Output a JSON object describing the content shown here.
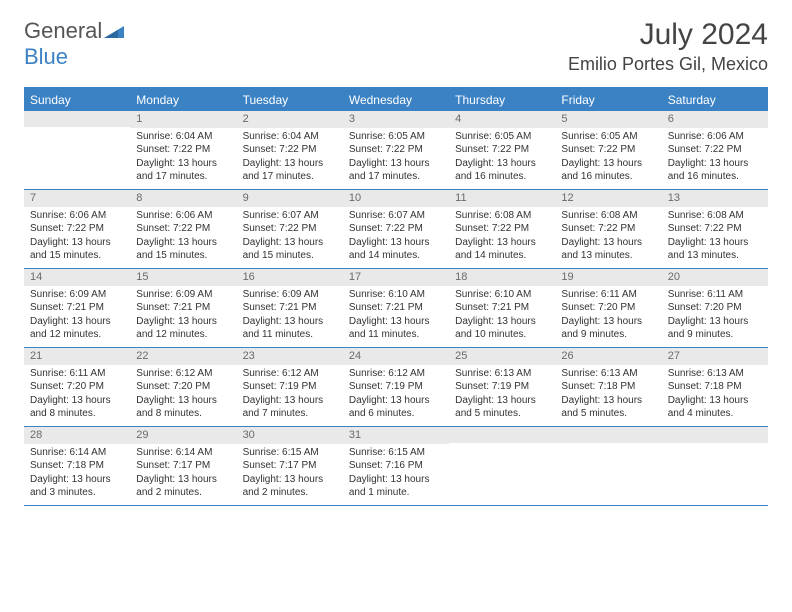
{
  "logo": {
    "text_gray": "General",
    "text_blue": "Blue"
  },
  "header": {
    "title": "July 2024",
    "location": "Emilio Portes Gil, Mexico"
  },
  "colors": {
    "accent": "#3b82c4",
    "header_bg": "#3b82c4",
    "header_text": "#ffffff",
    "daynum_bg": "#e9e9e9",
    "daynum_text": "#6a6a6a",
    "body_text": "#333333",
    "border": "#3b82c4"
  },
  "typography": {
    "title_fontsize": 30,
    "location_fontsize": 18,
    "dayheader_fontsize": 12,
    "daynum_fontsize": 11,
    "cell_fontsize": 10
  },
  "day_names": [
    "Sunday",
    "Monday",
    "Tuesday",
    "Wednesday",
    "Thursday",
    "Friday",
    "Saturday"
  ],
  "weeks": [
    [
      {
        "day": "",
        "lines": []
      },
      {
        "day": "1",
        "lines": [
          "Sunrise: 6:04 AM",
          "Sunset: 7:22 PM",
          "Daylight: 13 hours",
          "and 17 minutes."
        ]
      },
      {
        "day": "2",
        "lines": [
          "Sunrise: 6:04 AM",
          "Sunset: 7:22 PM",
          "Daylight: 13 hours",
          "and 17 minutes."
        ]
      },
      {
        "day": "3",
        "lines": [
          "Sunrise: 6:05 AM",
          "Sunset: 7:22 PM",
          "Daylight: 13 hours",
          "and 17 minutes."
        ]
      },
      {
        "day": "4",
        "lines": [
          "Sunrise: 6:05 AM",
          "Sunset: 7:22 PM",
          "Daylight: 13 hours",
          "and 16 minutes."
        ]
      },
      {
        "day": "5",
        "lines": [
          "Sunrise: 6:05 AM",
          "Sunset: 7:22 PM",
          "Daylight: 13 hours",
          "and 16 minutes."
        ]
      },
      {
        "day": "6",
        "lines": [
          "Sunrise: 6:06 AM",
          "Sunset: 7:22 PM",
          "Daylight: 13 hours",
          "and 16 minutes."
        ]
      }
    ],
    [
      {
        "day": "7",
        "lines": [
          "Sunrise: 6:06 AM",
          "Sunset: 7:22 PM",
          "Daylight: 13 hours",
          "and 15 minutes."
        ]
      },
      {
        "day": "8",
        "lines": [
          "Sunrise: 6:06 AM",
          "Sunset: 7:22 PM",
          "Daylight: 13 hours",
          "and 15 minutes."
        ]
      },
      {
        "day": "9",
        "lines": [
          "Sunrise: 6:07 AM",
          "Sunset: 7:22 PM",
          "Daylight: 13 hours",
          "and 15 minutes."
        ]
      },
      {
        "day": "10",
        "lines": [
          "Sunrise: 6:07 AM",
          "Sunset: 7:22 PM",
          "Daylight: 13 hours",
          "and 14 minutes."
        ]
      },
      {
        "day": "11",
        "lines": [
          "Sunrise: 6:08 AM",
          "Sunset: 7:22 PM",
          "Daylight: 13 hours",
          "and 14 minutes."
        ]
      },
      {
        "day": "12",
        "lines": [
          "Sunrise: 6:08 AM",
          "Sunset: 7:22 PM",
          "Daylight: 13 hours",
          "and 13 minutes."
        ]
      },
      {
        "day": "13",
        "lines": [
          "Sunrise: 6:08 AM",
          "Sunset: 7:22 PM",
          "Daylight: 13 hours",
          "and 13 minutes."
        ]
      }
    ],
    [
      {
        "day": "14",
        "lines": [
          "Sunrise: 6:09 AM",
          "Sunset: 7:21 PM",
          "Daylight: 13 hours",
          "and 12 minutes."
        ]
      },
      {
        "day": "15",
        "lines": [
          "Sunrise: 6:09 AM",
          "Sunset: 7:21 PM",
          "Daylight: 13 hours",
          "and 12 minutes."
        ]
      },
      {
        "day": "16",
        "lines": [
          "Sunrise: 6:09 AM",
          "Sunset: 7:21 PM",
          "Daylight: 13 hours",
          "and 11 minutes."
        ]
      },
      {
        "day": "17",
        "lines": [
          "Sunrise: 6:10 AM",
          "Sunset: 7:21 PM",
          "Daylight: 13 hours",
          "and 11 minutes."
        ]
      },
      {
        "day": "18",
        "lines": [
          "Sunrise: 6:10 AM",
          "Sunset: 7:21 PM",
          "Daylight: 13 hours",
          "and 10 minutes."
        ]
      },
      {
        "day": "19",
        "lines": [
          "Sunrise: 6:11 AM",
          "Sunset: 7:20 PM",
          "Daylight: 13 hours",
          "and 9 minutes."
        ]
      },
      {
        "day": "20",
        "lines": [
          "Sunrise: 6:11 AM",
          "Sunset: 7:20 PM",
          "Daylight: 13 hours",
          "and 9 minutes."
        ]
      }
    ],
    [
      {
        "day": "21",
        "lines": [
          "Sunrise: 6:11 AM",
          "Sunset: 7:20 PM",
          "Daylight: 13 hours",
          "and 8 minutes."
        ]
      },
      {
        "day": "22",
        "lines": [
          "Sunrise: 6:12 AM",
          "Sunset: 7:20 PM",
          "Daylight: 13 hours",
          "and 8 minutes."
        ]
      },
      {
        "day": "23",
        "lines": [
          "Sunrise: 6:12 AM",
          "Sunset: 7:19 PM",
          "Daylight: 13 hours",
          "and 7 minutes."
        ]
      },
      {
        "day": "24",
        "lines": [
          "Sunrise: 6:12 AM",
          "Sunset: 7:19 PM",
          "Daylight: 13 hours",
          "and 6 minutes."
        ]
      },
      {
        "day": "25",
        "lines": [
          "Sunrise: 6:13 AM",
          "Sunset: 7:19 PM",
          "Daylight: 13 hours",
          "and 5 minutes."
        ]
      },
      {
        "day": "26",
        "lines": [
          "Sunrise: 6:13 AM",
          "Sunset: 7:18 PM",
          "Daylight: 13 hours",
          "and 5 minutes."
        ]
      },
      {
        "day": "27",
        "lines": [
          "Sunrise: 6:13 AM",
          "Sunset: 7:18 PM",
          "Daylight: 13 hours",
          "and 4 minutes."
        ]
      }
    ],
    [
      {
        "day": "28",
        "lines": [
          "Sunrise: 6:14 AM",
          "Sunset: 7:18 PM",
          "Daylight: 13 hours",
          "and 3 minutes."
        ]
      },
      {
        "day": "29",
        "lines": [
          "Sunrise: 6:14 AM",
          "Sunset: 7:17 PM",
          "Daylight: 13 hours",
          "and 2 minutes."
        ]
      },
      {
        "day": "30",
        "lines": [
          "Sunrise: 6:15 AM",
          "Sunset: 7:17 PM",
          "Daylight: 13 hours",
          "and 2 minutes."
        ]
      },
      {
        "day": "31",
        "lines": [
          "Sunrise: 6:15 AM",
          "Sunset: 7:16 PM",
          "Daylight: 13 hours",
          "and 1 minute."
        ]
      },
      {
        "day": "",
        "lines": []
      },
      {
        "day": "",
        "lines": []
      },
      {
        "day": "",
        "lines": []
      }
    ]
  ]
}
